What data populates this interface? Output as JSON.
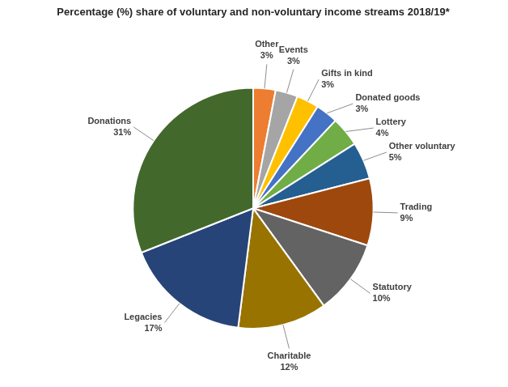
{
  "chart_data": {
    "type": "pie",
    "title": "Percentage (%) share of voluntary and non-voluntary income streams 2018/19*",
    "categories": [
      "Other",
      "Events",
      "Gifts in kind",
      "Donated goods",
      "Lottery",
      "Other voluntary",
      "Trading",
      "Statutory",
      "Charitable",
      "Legacies",
      "Donations"
    ],
    "values": [
      3,
      3,
      3,
      3,
      4,
      5,
      9,
      10,
      12,
      17,
      31
    ],
    "value_labels": [
      "3%",
      "3%",
      "3%",
      "3%",
      "4%",
      "5%",
      "9%",
      "10%",
      "12%",
      "17%",
      "31%"
    ],
    "colors": [
      "#ed7d31",
      "#a5a5a5",
      "#ffc000",
      "#4472c4",
      "#70ad47",
      "#255e91",
      "#9e480e",
      "#636363",
      "#997300",
      "#264478",
      "#43682b"
    ],
    "data_labels": true
  }
}
